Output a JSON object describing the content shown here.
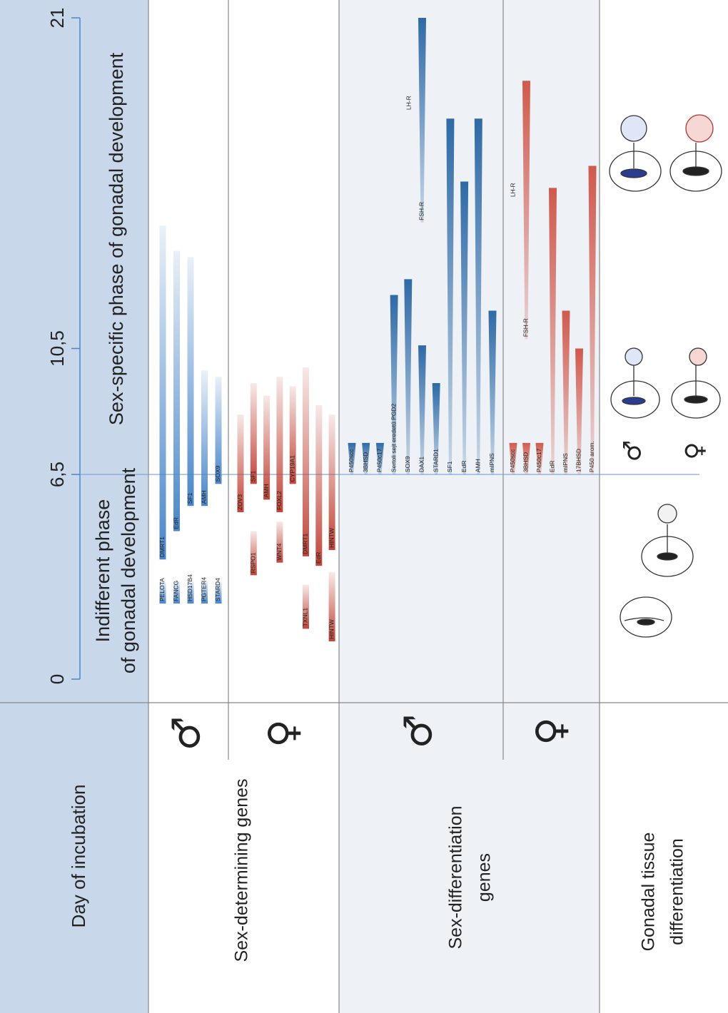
{
  "axis": {
    "lim": [
      0,
      21
    ],
    "ticks": [
      0,
      {
        "value": 6.5,
        "label": "6,5"
      },
      {
        "value": 10.5,
        "label": "10,5"
      },
      21
    ]
  },
  "header": {
    "title": "Day of incubation",
    "phases": [
      [
        "Indifferent phase",
        "of gonadal development"
      ],
      [
        "Sex-specific phase of gonadal development"
      ]
    ]
  },
  "sections": [
    {
      "label": [
        "Sex-determining genes"
      ],
      "shape": "bar",
      "groups": [
        {
          "symbol": "♂",
          "color": "#4a86c8",
          "columns": [
            [
              {
                "name": "PELOTA",
                "start": 2.4,
                "end": 3.1
              },
              {
                "name": "DMRT1",
                "start": 3.8,
                "end": 14.4
              }
            ],
            [
              {
                "name": "FANCG",
                "start": 2.4,
                "end": 3.1
              },
              {
                "name": "EdR",
                "start": 4.7,
                "end": 13.6
              }
            ],
            [
              {
                "name": "HSD17B4",
                "start": 2.4,
                "end": 3.1
              },
              {
                "name": "SF1",
                "start": 5.5,
                "end": 13.4
              }
            ],
            [
              {
                "name": "PGTER4",
                "start": 2.4,
                "end": 3.1
              },
              {
                "name": "AMH",
                "start": 5.5,
                "end": 9.8
              }
            ],
            [
              {
                "name": "STARD4",
                "start": 2.4,
                "end": 3.1
              },
              {
                "name": "SOX9",
                "start": 6.2,
                "end": 9.6
              }
            ]
          ]
        },
        {
          "symbol": "♀",
          "color": "#c0463a",
          "columns": [
            [
              {
                "name": "ZOV3",
                "start": 5.3,
                "end": 8.4
              }
            ],
            [
              {
                "name": "RSPO1",
                "start": 3.3,
                "end": 4.7
              },
              {
                "name": "SF1",
                "start": 6.2,
                "end": 9.4
              }
            ],
            [
              {
                "name": "AMH",
                "start": 5.7,
                "end": 9.0
              }
            ],
            [
              {
                "name": "WNT4",
                "start": 3.7,
                "end": 5.0
              },
              {
                "name": "FOXL2",
                "start": 5.3,
                "end": 9.6
              }
            ],
            [
              {
                "name": "CYP19A1",
                "start": 6.2,
                "end": 9.3
              }
            ],
            [
              {
                "name": "TXNL1",
                "start": 1.6,
                "end": 3.0
              },
              {
                "name": "DMRT1",
                "start": 3.9,
                "end": 9.9
              }
            ],
            [
              {
                "name": "EdR",
                "start": 3.6,
                "end": 8.7
              }
            ],
            [
              {
                "name": "HINTW",
                "start": 1.2,
                "end": 3.4
              },
              {
                "name": "HINTW",
                "start": 4.1,
                "end": 8.4
              }
            ]
          ]
        }
      ]
    },
    {
      "label": [
        "Sex-differentiation",
        "genes"
      ],
      "shape": "wedge",
      "groups": [
        {
          "symbol": "♂",
          "color": "#2f6aa6",
          "columns": [
            [
              {
                "name": "P450scc",
                "start": 6.5,
                "end": 7.5
              }
            ],
            [
              {
                "name": "3BHSD",
                "start": 6.5,
                "end": 7.5
              }
            ],
            [
              {
                "name": "P450c17",
                "start": 6.5,
                "end": 7.5
              }
            ],
            [
              {
                "name": "Sertoli sejt eredetű PGD2",
                "start": 6.5,
                "end": 12.2
              }
            ],
            [
              {
                "name": "SOX9",
                "start": 6.5,
                "end": 12.7
              }
            ],
            [
              {
                "name": "DAX1",
                "start": 6.5,
                "end": 10.6
              },
              {
                "name": "FSH-R",
                "start": 14.5,
                "end": 21,
                "upper": "LH-R"
              }
            ],
            [
              {
                "name": "STARD1",
                "start": 6.5,
                "end": 9.4
              }
            ],
            [
              {
                "name": "SF1",
                "start": 6.5,
                "end": 17.8
              }
            ],
            [
              {
                "name": "EdR",
                "start": 6.5,
                "end": 15.8
              }
            ],
            [
              {
                "name": "AMH",
                "start": 6.5,
                "end": 17.8
              }
            ],
            [
              {
                "name": "mIPNS",
                "start": 6.5,
                "end": 11.7
              }
            ]
          ]
        },
        {
          "symbol": "♀",
          "color": "#d05a4e",
          "columns": [
            [
              {
                "name": "P450scc",
                "start": 6.5,
                "end": 7.5
              }
            ],
            [
              {
                "name": "3BHSD",
                "start": 6.5,
                "end": 7.5
              },
              {
                "name": "FSH-R",
                "start": 10.8,
                "end": 19.0,
                "upper": "LH-R"
              }
            ],
            [
              {
                "name": "P450c17",
                "start": 6.5,
                "end": 7.5
              }
            ],
            [
              {
                "name": "EdR",
                "start": 6.5,
                "end": 15.6
              }
            ],
            [
              {
                "name": "mIPNS",
                "start": 6.5,
                "end": 11.7
              }
            ],
            [
              {
                "name": "17BHSD",
                "start": 6.5,
                "end": 10.5
              }
            ],
            [
              {
                "name": "P450 arom.",
                "start": 6.5,
                "end": 16.3
              }
            ]
          ]
        }
      ]
    }
  ],
  "tissue": {
    "label": [
      "Gonadal tissue",
      "differentiation"
    ],
    "symbols": [
      "♂",
      "♀"
    ]
  }
}
